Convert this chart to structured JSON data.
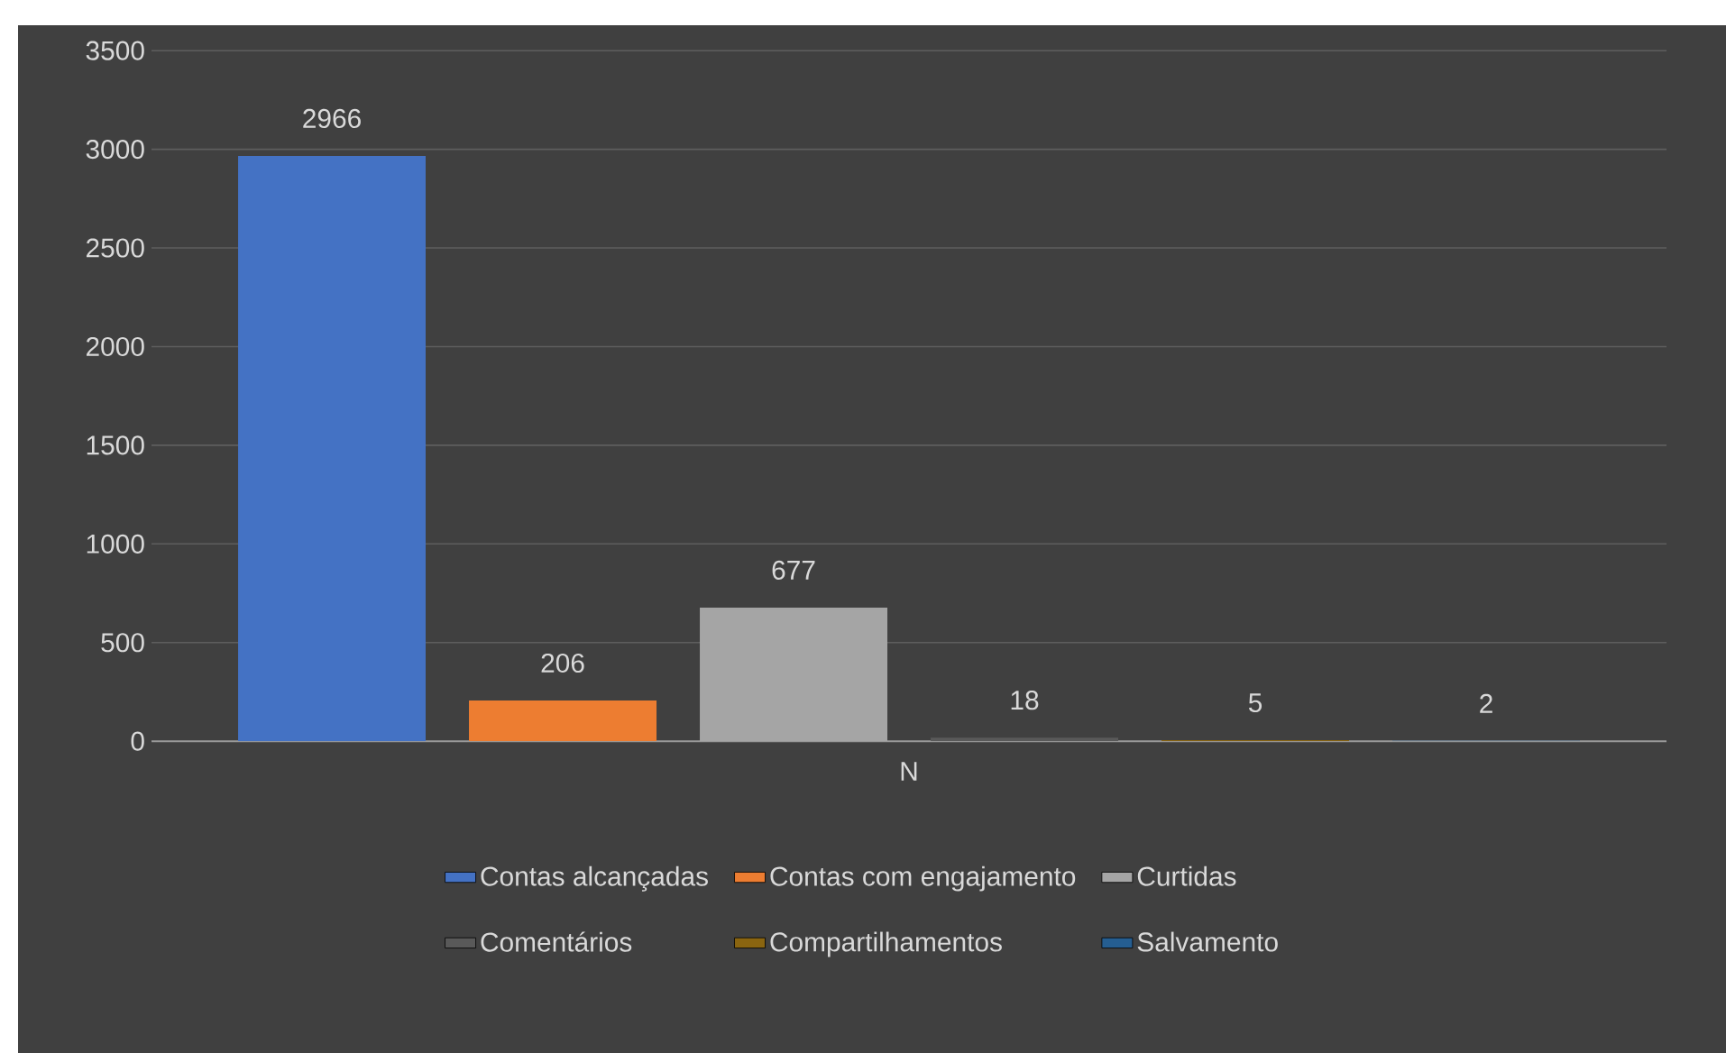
{
  "chart_data": {
    "type": "bar",
    "categories": [
      "N"
    ],
    "series": [
      {
        "name": "Contas alcançadas",
        "color": "#4472c4",
        "values": [
          2966
        ]
      },
      {
        "name": "Contas com engajamento",
        "color": "#ed7d31",
        "values": [
          206
        ]
      },
      {
        "name": "Curtidas",
        "color": "#a5a5a5",
        "values": [
          677
        ]
      },
      {
        "name": "Comentários",
        "color": "#595959",
        "values": [
          18
        ]
      },
      {
        "name": "Compartilhamentos",
        "color": "#8a6510",
        "values": [
          5
        ]
      },
      {
        "name": "Salvamento",
        "color": "#255e91",
        "values": [
          2
        ]
      }
    ],
    "ylim": [
      0,
      3500
    ],
    "yticks": [
      0,
      500,
      1000,
      1500,
      2000,
      2500,
      3000,
      3500
    ],
    "grid": "y",
    "legend": "bottom",
    "data_labels": true
  }
}
